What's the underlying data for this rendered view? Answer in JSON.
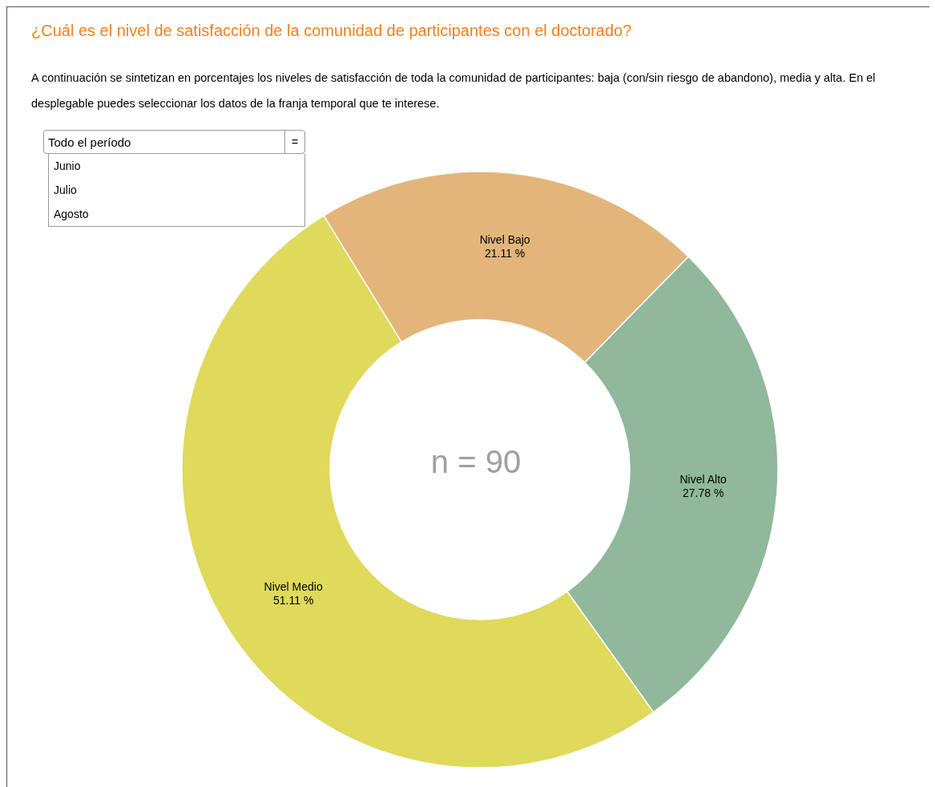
{
  "chart_data": {
    "type": "donut",
    "title": "¿Cuál es el nivel de satisfacción de la comunidad de participantes con el doctorado?",
    "subtitle": "A continuación se sintetizan en porcentajes los niveles de satisfacción de toda la comunidad de participantes: baja (con/sin riesgo de abandono), media y alta. En el desplegable puedes seleccionar los datos de la franja temporal que te interese.",
    "categories": [
      "Nivel Bajo",
      "Nivel Alto",
      "Nivel Medio"
    ],
    "values": [
      21.11,
      27.78,
      51.11
    ],
    "value_labels": [
      "21.11 %",
      "27.78 %",
      "51.11 %"
    ],
    "colors": [
      "#e3b57b",
      "#8fb99a",
      "#dfd95c"
    ],
    "annotations": [
      "Todo el período",
      "=",
      "Junio",
      "Julio",
      "Agosto",
      "n = 90"
    ],
    "legend": false
  }
}
